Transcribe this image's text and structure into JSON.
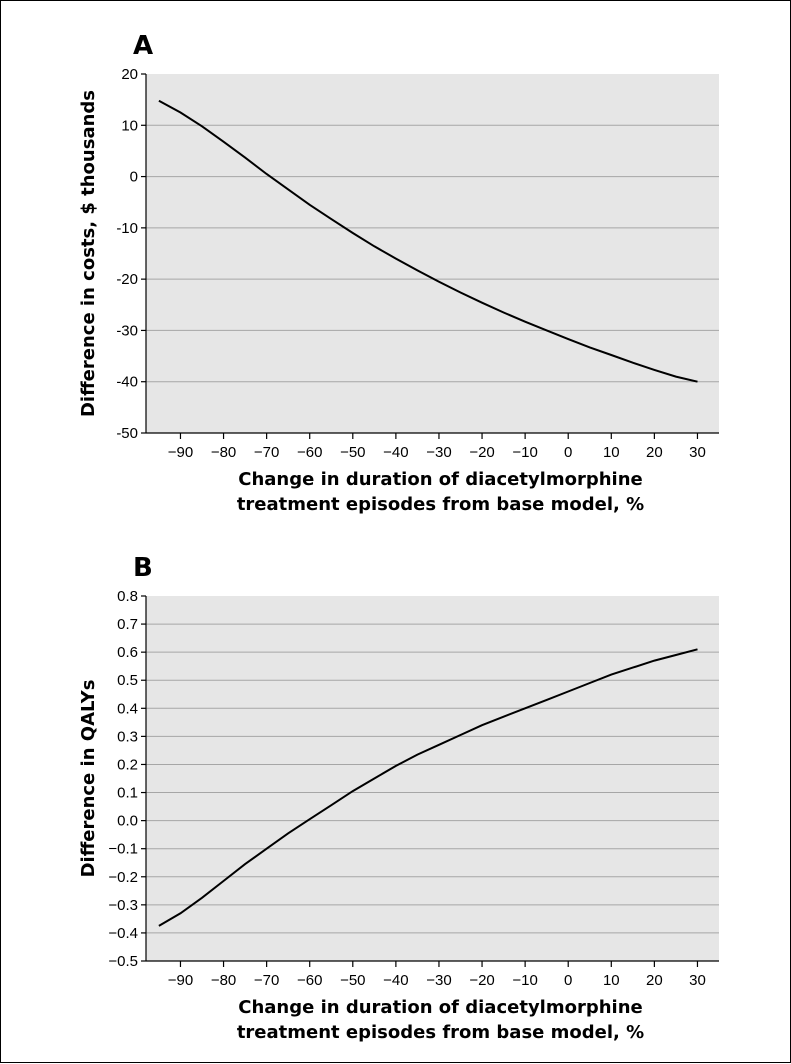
{
  "chart_data": [
    {
      "panel": "A",
      "type": "line",
      "xlabel": [
        "Change in duration of diacetylmorphine",
        "treatment episodes from base model, %"
      ],
      "ylabel": "Difference in costs, $ thousands",
      "xlim": [
        -98,
        35
      ],
      "ylim": [
        -50,
        20
      ],
      "xticks": [
        -90,
        -80,
        -70,
        -60,
        -50,
        -40,
        -30,
        -20,
        -10,
        0,
        10,
        20,
        30
      ],
      "yticks": [
        20,
        10,
        0,
        -10,
        -20,
        -30,
        -40,
        -50
      ],
      "grid": true,
      "series": [
        {
          "x": [
            -95,
            -90,
            -85,
            -80,
            -75,
            -70,
            -65,
            -60,
            -55,
            -50,
            -45,
            -40,
            -35,
            -30,
            -25,
            -20,
            -15,
            -10,
            -5,
            0,
            5,
            10,
            15,
            20,
            25,
            30
          ],
          "values": [
            14.8,
            12.5,
            9.8,
            6.8,
            3.7,
            0.5,
            -2.5,
            -5.5,
            -8.3,
            -11.0,
            -13.6,
            -16.0,
            -18.3,
            -20.5,
            -22.6,
            -24.6,
            -26.5,
            -28.3,
            -30.0,
            -31.7,
            -33.3,
            -34.8,
            -36.3,
            -37.7,
            -39.0,
            -40.0
          ]
        }
      ]
    },
    {
      "panel": "B",
      "type": "line",
      "xlabel": [
        "Change in duration of diacetylmorphine",
        "treatment episodes from base model, %"
      ],
      "ylabel": "Difference in QALYs",
      "xlim": [
        -98,
        35
      ],
      "ylim": [
        -0.5,
        0.8
      ],
      "xticks": [
        -90,
        -80,
        -70,
        -60,
        -50,
        -40,
        -30,
        -20,
        -10,
        0,
        10,
        20,
        30
      ],
      "yticks": [
        "0.8",
        "0.7",
        "0.6",
        "0.5",
        "0.4",
        "0.3",
        "0.2",
        "0.1",
        "0.0",
        "−0.1",
        "−0.2",
        "−0.3",
        "−0.4",
        "−0.5"
      ],
      "grid": true,
      "series": [
        {
          "x": [
            -95,
            -90,
            -85,
            -80,
            -75,
            -70,
            -65,
            -60,
            -55,
            -50,
            -45,
            -40,
            -35,
            -30,
            -25,
            -20,
            -15,
            -10,
            -5,
            0,
            5,
            10,
            15,
            20,
            25,
            30
          ],
          "values": [
            -0.375,
            -0.33,
            -0.275,
            -0.215,
            -0.155,
            -0.1,
            -0.045,
            0.005,
            0.055,
            0.105,
            0.15,
            0.195,
            0.235,
            0.27,
            0.305,
            0.34,
            0.37,
            0.4,
            0.43,
            0.46,
            0.49,
            0.52,
            0.545,
            0.57,
            0.59,
            0.61
          ]
        }
      ]
    }
  ]
}
